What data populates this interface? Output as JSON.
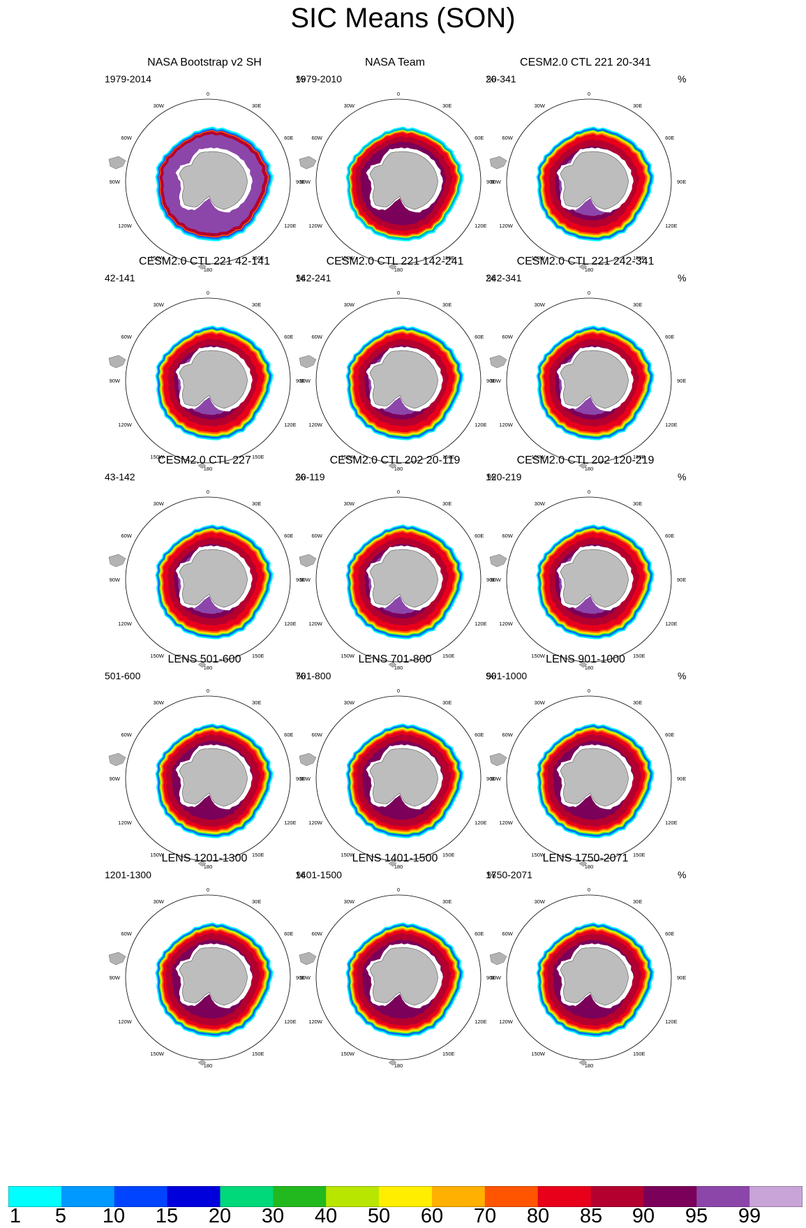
{
  "title": "SIC Means (SON)",
  "chart_data": {
    "type": "heatmap",
    "projection": "south polar stereographic",
    "variable": "sea ice concentration",
    "units": "%",
    "longitude_labels": [
      "0",
      "30E",
      "60E",
      "90E",
      "120E",
      "150E",
      "180",
      "150W",
      "120W",
      "90W",
      "60W",
      "30W"
    ],
    "panels": [
      {
        "title": "NASA Bootstrap v2 SH",
        "period": "1979-2014",
        "units": "%",
        "style": "bootstrap"
      },
      {
        "title": "NASA Team",
        "period": "1979-2010",
        "units": "%",
        "style": "team"
      },
      {
        "title": "CESM2.0 CTL 221 20-341",
        "period": "20-341",
        "units": "%",
        "style": "model"
      },
      {
        "title": "CESM2.0 CTL 221 42-141",
        "period": "42-141",
        "units": "%",
        "style": "model"
      },
      {
        "title": "CESM2.0 CTL 221 142-241",
        "period": "142-241",
        "units": "%",
        "style": "model"
      },
      {
        "title": "CESM2.0 CTL 221 242-341",
        "period": "242-341",
        "units": "%",
        "style": "model"
      },
      {
        "title": "CESM2.0 CTL 227",
        "period": "43-142",
        "units": "%",
        "style": "model"
      },
      {
        "title": "CESM2.0 CTL 202 20-119",
        "period": "20-119",
        "units": "%",
        "style": "model"
      },
      {
        "title": "CESM2.0 CTL 202 120-219",
        "period": "120-219",
        "units": "%",
        "style": "model"
      },
      {
        "title": "LENS 501-600",
        "period": "501-600",
        "units": "%",
        "style": "lens"
      },
      {
        "title": "LENS 701-800",
        "period": "701-800",
        "units": "%",
        "style": "lens"
      },
      {
        "title": "LENS 901-1000",
        "period": "901-1000",
        "units": "%",
        "style": "lens"
      },
      {
        "title": "LENS 1201-1300",
        "period": "1201-1300",
        "units": "%",
        "style": "lens"
      },
      {
        "title": "LENS 1401-1500",
        "period": "1401-1500",
        "units": "%",
        "style": "lens"
      },
      {
        "title": "LENS 1750-2071",
        "period": "1750-2071",
        "units": "%",
        "style": "lens"
      }
    ],
    "colorbar": {
      "labels": [
        "1",
        "5",
        "10",
        "15",
        "20",
        "30",
        "40",
        "50",
        "60",
        "70",
        "80",
        "85",
        "90",
        "95",
        "99"
      ],
      "colors": [
        "#00ffff",
        "#0099ff",
        "#0044ff",
        "#0000dd",
        "#00d97a",
        "#22b91e",
        "#b8e600",
        "#ffee00",
        "#ffb000",
        "#ff5500",
        "#e8001b",
        "#b4002e",
        "#7a005a",
        "#8c46aa",
        "#c9a4d8"
      ]
    }
  }
}
